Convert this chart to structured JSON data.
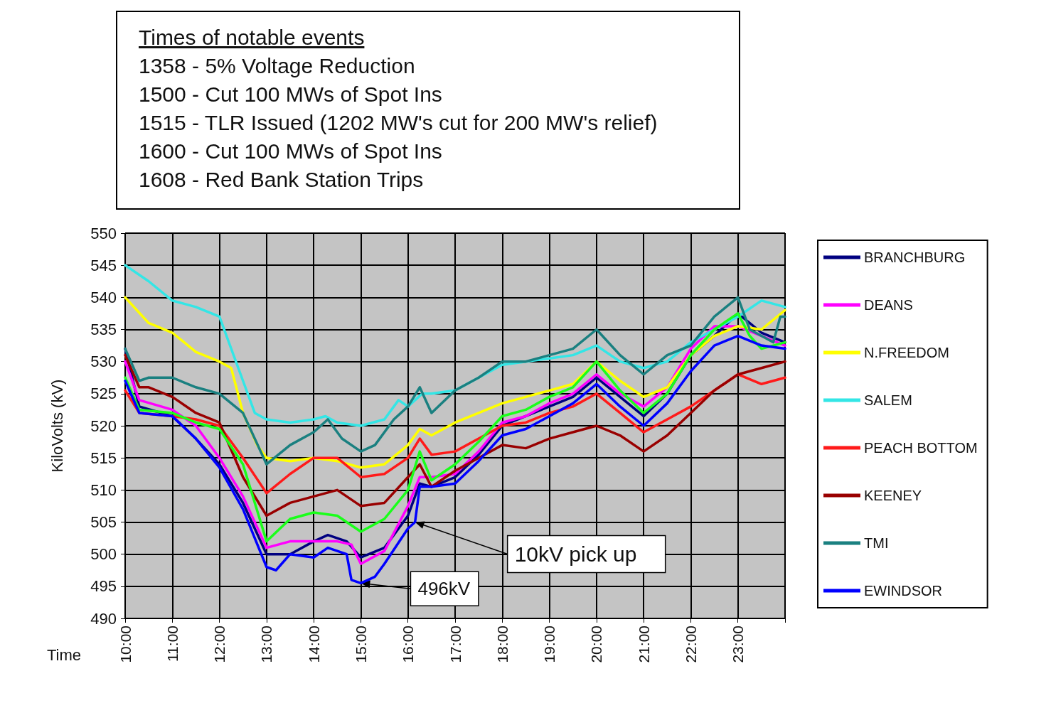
{
  "chart_data": {
    "type": "line",
    "title": "Times of notable events",
    "xlabel": "Time",
    "ylabel": "KiloVolts (kV)",
    "annotations": [
      "1358 - 5% Voltage Reduction",
      "1500 - Cut 100 MWs of Spot Ins",
      "1515 - TLR Issued (1202 MW's cut for 200 MW's relief)",
      "1600 - Cut 100 MWs of Spot Ins",
      "1608 - Red Bank Station Trips",
      {
        "text": "10kV pick up",
        "x": 16.15,
        "y": 505
      },
      {
        "text": "496kV",
        "x": 15,
        "y": 495.5
      }
    ],
    "xlim": [
      10,
      24
    ],
    "ylim": [
      490,
      550
    ],
    "xticks": [
      {
        "value": 10,
        "label": "10:00"
      },
      {
        "value": 11,
        "label": "11:00"
      },
      {
        "value": 12,
        "label": "12:00"
      },
      {
        "value": 13,
        "label": "13:00"
      },
      {
        "value": 14,
        "label": "14:00"
      },
      {
        "value": 15,
        "label": "15:00"
      },
      {
        "value": 16,
        "label": "16:00"
      },
      {
        "value": 17,
        "label": "17:00"
      },
      {
        "value": 18,
        "label": "18:00"
      },
      {
        "value": 19,
        "label": "19:00"
      },
      {
        "value": 20,
        "label": "20:00"
      },
      {
        "value": 21,
        "label": "21:00"
      },
      {
        "value": 22,
        "label": "22:00"
      },
      {
        "value": 23,
        "label": "23:00"
      },
      {
        "value": 24,
        "label": null
      }
    ],
    "yticks": [
      490,
      495,
      500,
      505,
      510,
      515,
      520,
      525,
      530,
      535,
      540,
      545,
      550
    ],
    "grid": true,
    "legend": "right",
    "marker": "none",
    "line_style": "solid",
    "series": [
      {
        "name": "BRANCHBURG",
        "color": "#000080",
        "x": [
          10,
          10.3,
          11,
          11.5,
          12,
          12.5,
          13,
          13.5,
          14,
          14.3,
          14.7,
          15,
          15.5,
          16,
          16.25,
          16.5,
          17,
          17.5,
          18,
          18.5,
          19,
          19.5,
          20,
          20.5,
          21,
          21.5,
          22,
          22.5,
          23,
          23.5,
          24
        ],
        "values": [
          532,
          523,
          521.5,
          518,
          514,
          508,
          500,
          500,
          502,
          503,
          502,
          499.5,
          501,
          506,
          511,
          510.5,
          512,
          515.5,
          520,
          521.5,
          523,
          524.5,
          527.5,
          524.5,
          521.5,
          525,
          531,
          534,
          537.5,
          534.5,
          533
        ]
      },
      {
        "name": "DEANS",
        "color": "#ff00ff",
        "x": [
          10,
          10.3,
          11,
          11.5,
          12,
          12.5,
          13,
          13.5,
          14,
          14.5,
          14.8,
          15,
          15.5,
          16,
          16.25,
          16.5,
          17,
          17.5,
          18,
          18.5,
          19,
          19.5,
          20,
          20.5,
          21,
          21.5,
          22,
          22.5,
          23,
          23.5,
          24
        ],
        "values": [
          530,
          524,
          522.5,
          520,
          515,
          509,
          501,
          502,
          502,
          502,
          501.5,
          498.5,
          500.5,
          507.5,
          512,
          512,
          512.5,
          516,
          520.5,
          521.5,
          523.5,
          525,
          528,
          525,
          523,
          526,
          532,
          535.5,
          535.5,
          534,
          532.5
        ]
      },
      {
        "name": "N.FREEDOM",
        "color": "#ffff00",
        "x": [
          10,
          10.5,
          11,
          11.5,
          12,
          12.25,
          12.5,
          12.8,
          13,
          13.5,
          14,
          14.5,
          15,
          15.5,
          16,
          16.25,
          16.5,
          17,
          17.5,
          18,
          18.5,
          19,
          19.5,
          20,
          20.5,
          21,
          21.5,
          22,
          22.5,
          23,
          23.5,
          24
        ],
        "values": [
          540,
          536,
          534.5,
          531.5,
          530,
          529,
          522,
          517,
          515,
          514.5,
          515,
          514.5,
          513.5,
          514,
          517,
          519.5,
          518.5,
          520.5,
          522,
          523.5,
          524.5,
          525.5,
          526.5,
          530,
          527,
          524.5,
          526,
          531,
          534,
          535.5,
          535,
          538
        ]
      },
      {
        "name": "SALEM",
        "color": "#33e6e6",
        "x": [
          10,
          10.5,
          11,
          11.5,
          12,
          12.5,
          12.75,
          13,
          13.5,
          14,
          14.25,
          14.5,
          15,
          15.5,
          15.8,
          16,
          16.3,
          16.5,
          17,
          17.5,
          18,
          18.5,
          19,
          19.5,
          20,
          20.5,
          21,
          21.5,
          22,
          22.5,
          23,
          23.5,
          24
        ],
        "values": [
          545,
          542.5,
          539.5,
          538.5,
          537,
          527,
          522,
          521,
          520.5,
          521,
          521.5,
          520.5,
          520,
          521,
          524,
          523,
          525,
          525,
          525.5,
          527.5,
          529.5,
          530,
          530.5,
          531,
          532.5,
          530,
          529,
          530,
          533,
          535,
          537,
          539.5,
          538.5
        ]
      },
      {
        "name": "PEACH BOTTOM",
        "color": "#ff1a1a",
        "x": [
          10,
          10.3,
          11,
          11.5,
          12,
          12.5,
          13,
          13.5,
          14,
          14.5,
          15,
          15.5,
          16,
          16.25,
          16.5,
          17,
          17.5,
          18,
          18.5,
          19,
          19.5,
          20,
          20.5,
          21,
          21.5,
          22,
          22.5,
          23,
          23.5,
          24
        ],
        "values": [
          525.5,
          522,
          521.5,
          521,
          520,
          515,
          509.5,
          512.5,
          515,
          515,
          512,
          512.5,
          515,
          518,
          515.5,
          516,
          518,
          520,
          520.5,
          522,
          523,
          525,
          522,
          519,
          521,
          523,
          525.5,
          528,
          526.5,
          527.5
        ]
      },
      {
        "name": "KEENEY",
        "color": "#990000",
        "x": [
          10,
          10.3,
          10.5,
          11,
          11.5,
          12,
          12.5,
          13,
          13.5,
          14,
          14.5,
          15,
          15.5,
          16,
          16.25,
          16.5,
          17,
          17.5,
          18,
          18.5,
          19,
          19.5,
          20,
          20.5,
          21,
          21.5,
          22,
          22.5,
          23,
          23.5,
          24
        ],
        "values": [
          531,
          526,
          526,
          524.5,
          522,
          520.5,
          512,
          506,
          508,
          509,
          510,
          507.5,
          508,
          512,
          514,
          510.5,
          513,
          515,
          517,
          516.5,
          518,
          519,
          520,
          518.5,
          516,
          518.5,
          522,
          525.5,
          528,
          529,
          530
        ]
      },
      {
        "name": "TMI",
        "color": "#1a8080",
        "x": [
          10,
          10.3,
          10.5,
          11,
          11.5,
          12,
          12.5,
          13,
          13.5,
          14,
          14.3,
          14.6,
          15,
          15.3,
          15.7,
          16,
          16.25,
          16.5,
          17,
          17.5,
          18,
          18.5,
          19,
          19.5,
          20,
          20.5,
          21,
          21.5,
          22,
          22.5,
          23,
          23.25,
          23.5,
          23.75,
          23.9,
          24
        ],
        "values": [
          532,
          527,
          527.5,
          527.5,
          526,
          525,
          522,
          514,
          517,
          519,
          521,
          518,
          516,
          517,
          521,
          523,
          526,
          522,
          525.5,
          527.5,
          530,
          530,
          531,
          532,
          535,
          531,
          528,
          531,
          532.5,
          537,
          540,
          535,
          534,
          533,
          537,
          537
        ]
      },
      {
        "color": "#1aff1a",
        "x": [
          10,
          10.3,
          11,
          11.5,
          12,
          12.5,
          13,
          13.5,
          14,
          14.5,
          15,
          15.5,
          16,
          16.25,
          16.5,
          17,
          17.5,
          18,
          18.5,
          19,
          19.5,
          20,
          20.5,
          21,
          21.5,
          22,
          22.5,
          23,
          23.25,
          23.5,
          24
        ],
        "values": [
          527.5,
          522.5,
          522,
          520.5,
          519.5,
          514,
          502,
          505.5,
          506.5,
          506,
          503.5,
          505.5,
          510,
          516,
          511.5,
          514,
          517.5,
          521.5,
          522.5,
          524.5,
          526,
          530,
          525.5,
          522,
          525,
          531,
          535,
          537.5,
          534,
          532,
          533
        ]
      },
      {
        "name": "EWINDSOR",
        "color": "#0000ff",
        "x": [
          10,
          10.3,
          11,
          11.5,
          12,
          12.5,
          13,
          13.2,
          13.5,
          14,
          14.3,
          14.7,
          14.8,
          15,
          15.3,
          15.5,
          16,
          16.15,
          16.25,
          16.5,
          17,
          17.5,
          18,
          18.5,
          19,
          19.5,
          20,
          20.5,
          21,
          21.5,
          22,
          22.5,
          23,
          23.5,
          24
        ],
        "values": [
          527,
          522,
          521.5,
          518,
          513.5,
          507,
          498,
          497.5,
          500,
          499.5,
          501,
          500,
          496,
          495.5,
          496.5,
          498.5,
          504,
          505,
          510.5,
          510.5,
          511,
          514.5,
          518.5,
          519.5,
          521.5,
          523.5,
          526.5,
          523,
          520,
          523.5,
          528.5,
          532.5,
          534,
          532.5,
          532
        ]
      }
    ]
  }
}
